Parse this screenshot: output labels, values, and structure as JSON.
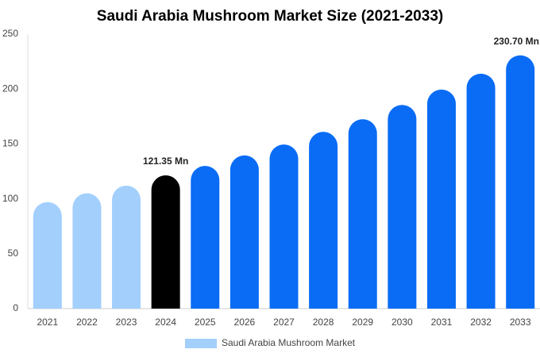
{
  "chart_data": {
    "type": "bar",
    "title": "Saudi Arabia Mushroom Market Size (2021-2033)",
    "categories": [
      "2021",
      "2022",
      "2023",
      "2024",
      "2025",
      "2026",
      "2027",
      "2028",
      "2029",
      "2030",
      "2031",
      "2032",
      "2033"
    ],
    "series": [
      {
        "name": "Saudi Arabia Mushroom Market",
        "color": "#a3cffd",
        "colors": [
          "#a3cffd",
          "#a3cffd",
          "#a3cffd",
          "#000000",
          "#0a6cf5",
          "#0a6cf5",
          "#0a6cf5",
          "#0a6cf5",
          "#0a6cf5",
          "#0a6cf5",
          "#0a6cf5",
          "#0a6cf5",
          "#0a6cf5"
        ],
        "values": [
          97,
          105,
          112,
          121.35,
          130,
          139.5,
          149.5,
          161,
          172.5,
          185.5,
          199.5,
          214,
          230.7
        ],
        "value_labels": [
          null,
          null,
          null,
          "121.35 Mn",
          null,
          null,
          null,
          null,
          null,
          null,
          null,
          null,
          "230.70 Mn"
        ]
      }
    ],
    "ylim": [
      0,
      250
    ],
    "yticks": [
      0,
      50,
      100,
      150,
      200,
      250
    ],
    "grid": false,
    "legend": "bottom"
  }
}
